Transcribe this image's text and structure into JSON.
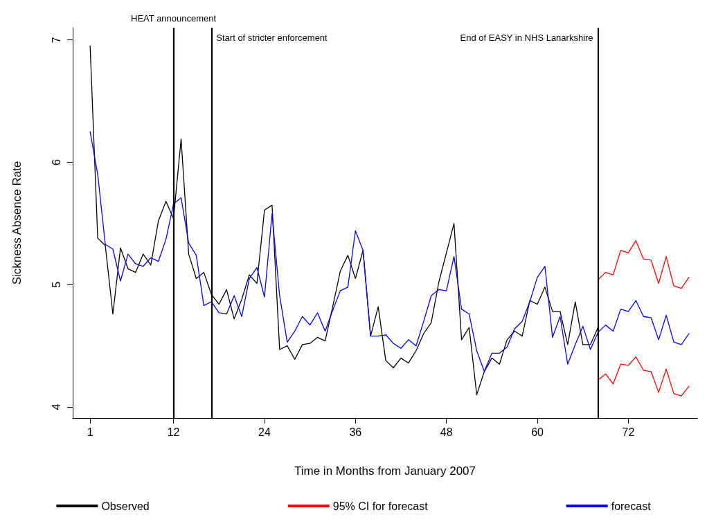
{
  "chart_data": {
    "type": "line",
    "xlabel": "Time in Months from January 2007",
    "ylabel": "Sickness Absence Rate",
    "xlim": [
      -1.3,
      81.1
    ],
    "ylim": [
      3.91,
      7.1
    ],
    "xticks": [
      1,
      12,
      24,
      36,
      48,
      60,
      72
    ],
    "yticks": [
      4,
      5,
      6,
      7
    ],
    "grid": false,
    "legend": "bottom",
    "marker": "none",
    "line_style": "solid",
    "ref_lines": [
      {
        "axis": "x",
        "value": 12,
        "label": "HEAT announcement",
        "color": "#000000"
      },
      {
        "axis": "x",
        "value": 17,
        "label": "Start of stricter enforcement",
        "color": "#000000"
      },
      {
        "axis": "x",
        "value": 68,
        "label": "End of EASY in NHS Lanarkshire",
        "color": "#000000"
      }
    ],
    "series": [
      {
        "name": "Observed",
        "color": "#000000",
        "x": [
          1,
          2,
          3,
          4,
          5,
          6,
          7,
          8,
          9,
          10,
          11,
          12,
          13,
          14,
          15,
          16,
          17,
          18,
          19,
          20,
          21,
          22,
          23,
          24,
          25,
          26,
          27,
          28,
          29,
          30,
          31,
          32,
          33,
          34,
          35,
          36,
          37,
          38,
          39,
          40,
          41,
          42,
          43,
          44,
          45,
          46,
          47,
          48,
          49,
          50,
          51,
          52,
          53,
          54,
          55,
          56,
          57,
          58,
          59,
          60,
          61,
          62,
          63,
          64,
          65,
          66,
          67,
          68
        ],
        "values": [
          6.95,
          5.38,
          5.32,
          4.76,
          5.3,
          5.13,
          5.1,
          5.25,
          5.16,
          5.52,
          5.68,
          5.54,
          6.19,
          5.25,
          5.05,
          5.1,
          4.92,
          4.84,
          4.96,
          4.72,
          4.88,
          5.08,
          5.01,
          5.61,
          5.65,
          4.47,
          4.5,
          4.39,
          4.51,
          4.52,
          4.57,
          4.54,
          4.82,
          5.11,
          5.24,
          5.05,
          5.28,
          4.58,
          4.82,
          4.38,
          4.32,
          4.4,
          4.36,
          4.46,
          4.6,
          4.69,
          5.02,
          5.26,
          5.5,
          4.55,
          4.65,
          4.1,
          4.29,
          4.4,
          4.35,
          4.55,
          4.62,
          4.58,
          4.87,
          4.84,
          4.98,
          4.78,
          4.78,
          4.51,
          4.86,
          4.51,
          4.51,
          4.65
        ]
      },
      {
        "name": "95% CI for forecast",
        "color": "#ff0000",
        "x": [
          68,
          69,
          70,
          71,
          72,
          73,
          74,
          75,
          76,
          77,
          78,
          79,
          80
        ],
        "values": [
          5.04,
          5.1,
          5.08,
          5.28,
          5.26,
          5.36,
          5.21,
          5.2,
          5.01,
          5.23,
          4.99,
          4.97,
          5.06
        ]
      },
      {
        "color": "#ff0000",
        "x": [
          68,
          69,
          70,
          71,
          72,
          73,
          74,
          75,
          76,
          77,
          78,
          79,
          80
        ],
        "values": [
          4.22,
          4.27,
          4.19,
          4.35,
          4.34,
          4.41,
          4.3,
          4.29,
          4.12,
          4.31,
          4.11,
          4.09,
          4.17
        ]
      },
      {
        "name": "forecast",
        "color": "#0000ff",
        "x": [
          1,
          2,
          3,
          4,
          5,
          6,
          7,
          8,
          9,
          10,
          11,
          12,
          13,
          14,
          15,
          16,
          17,
          18,
          19,
          20,
          21,
          22,
          23,
          24,
          25,
          26,
          27,
          28,
          29,
          30,
          31,
          32,
          33,
          34,
          35,
          36,
          37,
          38,
          39,
          40,
          41,
          42,
          43,
          44,
          45,
          46,
          47,
          48,
          49,
          50,
          51,
          52,
          53,
          54,
          55,
          56,
          57,
          58,
          59,
          60,
          61,
          62,
          63,
          64,
          65,
          66,
          67,
          68,
          69,
          70,
          71,
          72,
          73,
          74,
          75,
          76,
          77,
          78,
          79,
          80
        ],
        "values": [
          6.25,
          5.9,
          5.33,
          5.29,
          5.03,
          5.25,
          5.17,
          5.15,
          5.22,
          5.19,
          5.37,
          5.66,
          5.71,
          5.34,
          5.24,
          4.83,
          4.86,
          4.77,
          4.76,
          4.91,
          4.74,
          5.05,
          5.14,
          4.9,
          5.58,
          4.91,
          4.53,
          4.62,
          4.74,
          4.67,
          4.77,
          4.62,
          4.79,
          4.95,
          4.98,
          5.44,
          5.28,
          4.58,
          4.58,
          4.59,
          4.52,
          4.48,
          4.55,
          4.5,
          4.7,
          4.91,
          4.96,
          4.95,
          5.23,
          4.8,
          4.76,
          4.46,
          4.29,
          4.44,
          4.44,
          4.49,
          4.64,
          4.7,
          4.86,
          5.06,
          5.15,
          4.57,
          4.74,
          4.35,
          4.51,
          4.66,
          4.47,
          4.61,
          4.67,
          4.62,
          4.8,
          4.78,
          4.87,
          4.74,
          4.73,
          4.55,
          4.75,
          4.53,
          4.51,
          4.6
        ]
      }
    ]
  }
}
